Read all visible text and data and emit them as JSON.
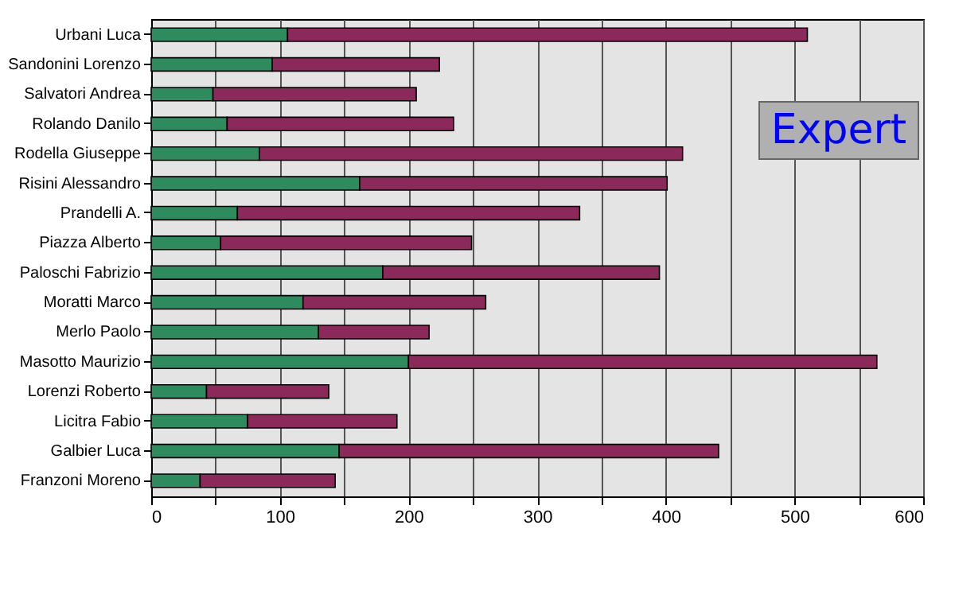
{
  "chart_data": {
    "type": "bar",
    "orientation": "horizontal",
    "stacked": true,
    "categories": [
      "Urbani Luca",
      "Sandonini Lorenzo",
      "Salvatori Andrea",
      "Rolando Danilo",
      "Rodella Giuseppe",
      "Risini Alessandro",
      "Prandelli A.",
      "Piazza Alberto",
      "Paloschi Fabrizio",
      "Moratti Marco",
      "Merlo Paolo",
      "Masotto Maurizio",
      "Lorenzi Roberto",
      "Licitra Fabio",
      "Galbier Luca",
      "Franzoni Moreno"
    ],
    "series": [
      {
        "color": "#2e8b5e",
        "values": [
          106,
          94,
          48,
          59,
          84,
          162,
          67,
          54,
          180,
          118,
          130,
          200,
          43,
          75,
          146,
          38
        ]
      },
      {
        "color": "#8b2a5a",
        "values": [
          404,
          130,
          158,
          176,
          329,
          239,
          266,
          195,
          215,
          142,
          86,
          364,
          95,
          116,
          295,
          105
        ]
      }
    ],
    "xlim": [
      0,
      600
    ],
    "xticks": [
      0,
      {
        "value": 50,
        "label": null
      },
      100,
      {
        "value": 150,
        "label": null
      },
      200,
      {
        "value": 250,
        "label": null
      },
      300,
      {
        "value": 350,
        "label": null
      },
      400,
      {
        "value": 450,
        "label": null
      },
      500,
      {
        "value": 550,
        "label": null
      },
      600
    ],
    "grid": "x",
    "annotations": [
      "Expert"
    ]
  }
}
